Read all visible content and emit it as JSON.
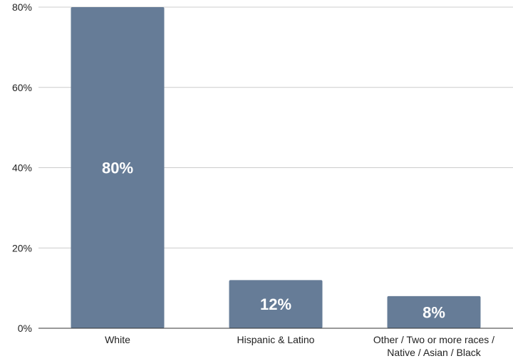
{
  "chart_data": {
    "type": "bar",
    "categories": [
      [
        "White"
      ],
      [
        "Hispanic & Latino"
      ],
      [
        "Other / Two or more races /",
        "Native / Asian / Black"
      ]
    ],
    "values": [
      80,
      12,
      8
    ],
    "data_labels": [
      "80%",
      "12%",
      "8%"
    ],
    "y_ticks": [
      0,
      20,
      40,
      60,
      80
    ],
    "y_tick_labels": [
      "0%",
      "20%",
      "40%",
      "60%",
      "80%"
    ],
    "ylim": [
      0,
      80
    ],
    "grid": true,
    "legend": "none",
    "colors": {
      "bar": "#667c97",
      "grid": "#cccccc",
      "axis": "#333333",
      "label": "#ffffff"
    }
  }
}
